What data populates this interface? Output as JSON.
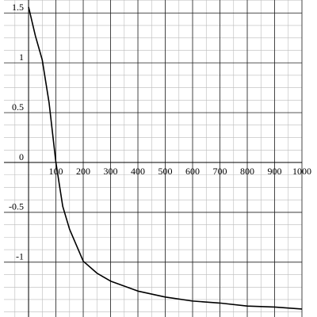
{
  "chart_data": {
    "type": "line",
    "x": [
      0,
      25,
      50,
      75,
      100,
      125,
      150,
      200,
      250,
      300,
      400,
      500,
      600,
      700,
      800,
      900,
      1000
    ],
    "values": [
      1.56,
      1.27,
      1.03,
      0.6,
      0,
      -0.44,
      -0.67,
      -0.99,
      -1.11,
      -1.19,
      -1.29,
      -1.35,
      -1.39,
      -1.41,
      -1.44,
      -1.45,
      -1.47
    ],
    "color": "#000000",
    "xlim": [
      -90,
      1000
    ],
    "ylim": [
      -1.55,
      1.63
    ],
    "xticks": [
      100,
      200,
      300,
      400,
      500,
      600,
      700,
      800,
      900,
      1000
    ],
    "yticks": [
      -1,
      -0.5,
      0,
      0.5,
      1,
      1.5
    ],
    "grid": true
  }
}
